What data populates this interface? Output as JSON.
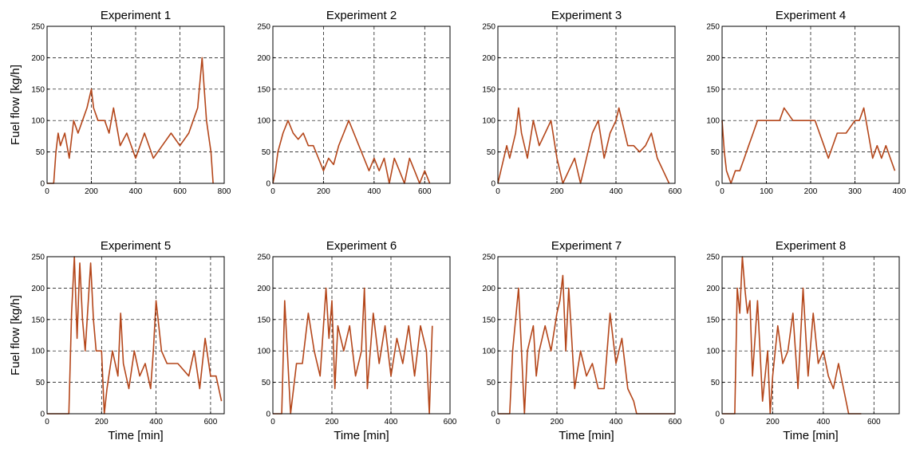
{
  "chart_data": [
    {
      "type": "line",
      "title": "Experiment 1",
      "ylabel": "Fuel flow [kg/h]",
      "color": "#b4461a",
      "grid": true,
      "xlim": [
        0,
        800
      ],
      "xticks": [
        0,
        200,
        400,
        600,
        800
      ],
      "ylim": [
        0,
        250
      ],
      "yticks": [
        0,
        50,
        100,
        150,
        200,
        250
      ],
      "x": [
        0,
        30,
        40,
        50,
        60,
        80,
        100,
        120,
        140,
        160,
        180,
        200,
        210,
        230,
        260,
        280,
        300,
        330,
        360,
        400,
        440,
        480,
        520,
        560,
        600,
        640,
        660,
        680,
        700,
        710,
        720,
        740,
        750
      ],
      "values": [
        0,
        0,
        50,
        80,
        60,
        80,
        40,
        100,
        80,
        100,
        120,
        150,
        120,
        100,
        100,
        80,
        120,
        60,
        80,
        40,
        80,
        40,
        60,
        80,
        60,
        80,
        100,
        120,
        200,
        150,
        100,
        50,
        0
      ]
    },
    {
      "type": "line",
      "title": "Experiment 2",
      "color": "#b4461a",
      "grid": true,
      "xlim": [
        0,
        700
      ],
      "xticks": [
        0,
        200,
        400,
        600
      ],
      "ylim": [
        0,
        250
      ],
      "yticks": [
        0,
        50,
        100,
        150,
        200,
        250
      ],
      "x": [
        0,
        10,
        20,
        40,
        60,
        80,
        100,
        120,
        140,
        160,
        180,
        200,
        220,
        240,
        260,
        280,
        300,
        320,
        340,
        360,
        380,
        400,
        420,
        440,
        460,
        480,
        500,
        520,
        540,
        560,
        580,
        600,
        620
      ],
      "values": [
        0,
        20,
        50,
        80,
        100,
        80,
        70,
        80,
        60,
        60,
        40,
        20,
        40,
        30,
        60,
        80,
        100,
        80,
        60,
        40,
        20,
        40,
        20,
        40,
        0,
        40,
        20,
        0,
        40,
        20,
        0,
        20,
        0
      ]
    },
    {
      "type": "line",
      "title": "Experiment 3",
      "color": "#b4461a",
      "grid": true,
      "xlim": [
        0,
        600
      ],
      "xticks": [
        0,
        200,
        400,
        600
      ],
      "ylim": [
        0,
        250
      ],
      "yticks": [
        0,
        50,
        100,
        150,
        200,
        250
      ],
      "x": [
        0,
        10,
        20,
        30,
        40,
        60,
        70,
        80,
        100,
        120,
        140,
        160,
        180,
        200,
        220,
        240,
        260,
        280,
        300,
        320,
        340,
        360,
        380,
        400,
        410,
        420,
        440,
        460,
        480,
        500,
        520,
        540,
        560,
        580
      ],
      "values": [
        0,
        20,
        40,
        60,
        40,
        80,
        120,
        80,
        40,
        100,
        60,
        80,
        100,
        40,
        0,
        20,
        40,
        0,
        40,
        80,
        100,
        40,
        80,
        100,
        120,
        100,
        60,
        60,
        50,
        60,
        80,
        40,
        20,
        0
      ]
    },
    {
      "type": "line",
      "title": "Experiment 4",
      "color": "#b4461a",
      "grid": true,
      "xlim": [
        0,
        400
      ],
      "xticks": [
        0,
        100,
        200,
        300,
        400
      ],
      "ylim": [
        0,
        250
      ],
      "yticks": [
        0,
        50,
        100,
        150,
        200,
        250
      ],
      "x": [
        0,
        5,
        10,
        20,
        30,
        40,
        50,
        60,
        70,
        80,
        100,
        130,
        140,
        160,
        200,
        210,
        220,
        230,
        240,
        260,
        280,
        300,
        310,
        320,
        330,
        340,
        350,
        360,
        370,
        380,
        390
      ],
      "values": [
        100,
        50,
        20,
        0,
        20,
        20,
        40,
        60,
        80,
        100,
        100,
        100,
        120,
        100,
        100,
        100,
        80,
        60,
        40,
        80,
        80,
        100,
        100,
        120,
        80,
        40,
        60,
        40,
        60,
        40,
        20
      ]
    },
    {
      "type": "line",
      "title": "Experiment 5",
      "ylabel": "Fuel flow [kg/h]",
      "xlabel": "Time [min]",
      "color": "#b4461a",
      "grid": true,
      "xlim": [
        0,
        650
      ],
      "xticks": [
        0,
        200,
        400,
        600
      ],
      "ylim": [
        0,
        250
      ],
      "yticks": [
        0,
        50,
        100,
        150,
        200,
        250
      ],
      "x": [
        0,
        80,
        90,
        100,
        110,
        120,
        130,
        140,
        160,
        170,
        180,
        200,
        210,
        220,
        240,
        260,
        270,
        280,
        300,
        320,
        340,
        360,
        380,
        390,
        400,
        410,
        420,
        440,
        480,
        520,
        540,
        560,
        580,
        600,
        620,
        640
      ],
      "values": [
        0,
        0,
        160,
        250,
        120,
        240,
        150,
        100,
        240,
        150,
        100,
        100,
        0,
        40,
        100,
        60,
        160,
        80,
        40,
        100,
        60,
        80,
        40,
        100,
        180,
        140,
        100,
        80,
        80,
        60,
        100,
        40,
        120,
        60,
        60,
        20
      ]
    },
    {
      "type": "line",
      "title": "Experiment 6",
      "xlabel": "Time [min]",
      "color": "#b4461a",
      "grid": true,
      "xlim": [
        0,
        600
      ],
      "xticks": [
        0,
        200,
        400,
        600
      ],
      "ylim": [
        0,
        250
      ],
      "yticks": [
        0,
        50,
        100,
        150,
        200,
        250
      ],
      "x": [
        0,
        30,
        40,
        60,
        80,
        100,
        120,
        140,
        160,
        180,
        190,
        200,
        210,
        220,
        240,
        260,
        280,
        300,
        310,
        320,
        340,
        360,
        380,
        400,
        420,
        440,
        460,
        480,
        500,
        520,
        530,
        540
      ],
      "values": [
        0,
        0,
        180,
        0,
        80,
        80,
        160,
        100,
        60,
        200,
        120,
        180,
        40,
        140,
        100,
        140,
        60,
        100,
        200,
        40,
        160,
        80,
        140,
        60,
        120,
        80,
        140,
        60,
        140,
        100,
        0,
        140
      ]
    },
    {
      "type": "line",
      "title": "Experiment 7",
      "xlabel": "Time [min]",
      "color": "#b4461a",
      "grid": true,
      "xlim": [
        0,
        600
      ],
      "xticks": [
        0,
        200,
        400,
        600
      ],
      "ylim": [
        0,
        250
      ],
      "yticks": [
        0,
        50,
        100,
        150,
        200,
        250
      ],
      "x": [
        0,
        40,
        50,
        70,
        90,
        100,
        120,
        130,
        140,
        160,
        180,
        200,
        210,
        220,
        230,
        240,
        260,
        280,
        300,
        320,
        340,
        360,
        380,
        400,
        420,
        440,
        460,
        470,
        600
      ],
      "values": [
        0,
        0,
        100,
        200,
        0,
        100,
        140,
        60,
        100,
        140,
        100,
        160,
        180,
        220,
        100,
        200,
        40,
        100,
        60,
        80,
        40,
        40,
        160,
        80,
        120,
        40,
        20,
        0,
        0
      ]
    },
    {
      "type": "line",
      "title": "Experiment 8",
      "xlabel": "Time [min]",
      "color": "#b4461a",
      "grid": true,
      "xlim": [
        0,
        700
      ],
      "xticks": [
        0,
        200,
        400,
        600
      ],
      "ylim": [
        0,
        250
      ],
      "yticks": [
        0,
        50,
        100,
        150,
        200,
        250
      ],
      "x": [
        0,
        50,
        60,
        70,
        80,
        90,
        100,
        110,
        120,
        140,
        160,
        180,
        190,
        200,
        220,
        240,
        260,
        280,
        300,
        320,
        340,
        360,
        380,
        400,
        420,
        440,
        460,
        480,
        500,
        550
      ],
      "values": [
        0,
        0,
        200,
        160,
        250,
        200,
        160,
        180,
        60,
        180,
        20,
        100,
        0,
        60,
        140,
        80,
        100,
        160,
        40,
        200,
        60,
        160,
        80,
        100,
        60,
        40,
        80,
        40,
        0,
        0
      ]
    }
  ]
}
